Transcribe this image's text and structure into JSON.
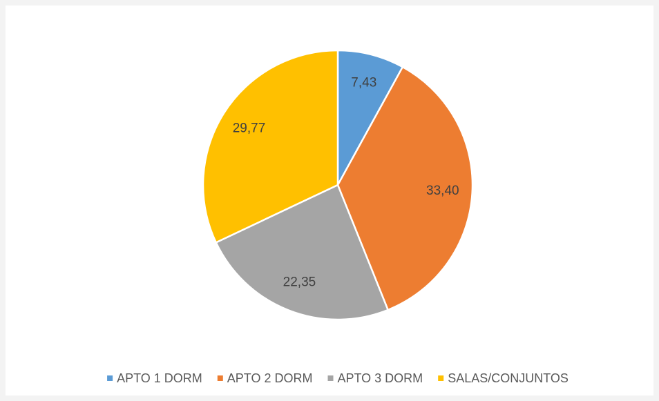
{
  "chart_data": {
    "type": "pie",
    "categories": [
      "APTO 1 DORM",
      "APTO 2 DORM",
      "APTO 3 DORM",
      "SALAS/CONJUNTOS"
    ],
    "values": [
      7.43,
      33.4,
      22.35,
      29.77
    ],
    "value_labels": [
      "7,43",
      "33,40",
      "22,35",
      "29,77"
    ],
    "colors": [
      "#5b9bd5",
      "#ed7d31",
      "#a5a5a5",
      "#ffc000"
    ],
    "legend": "bottom"
  }
}
